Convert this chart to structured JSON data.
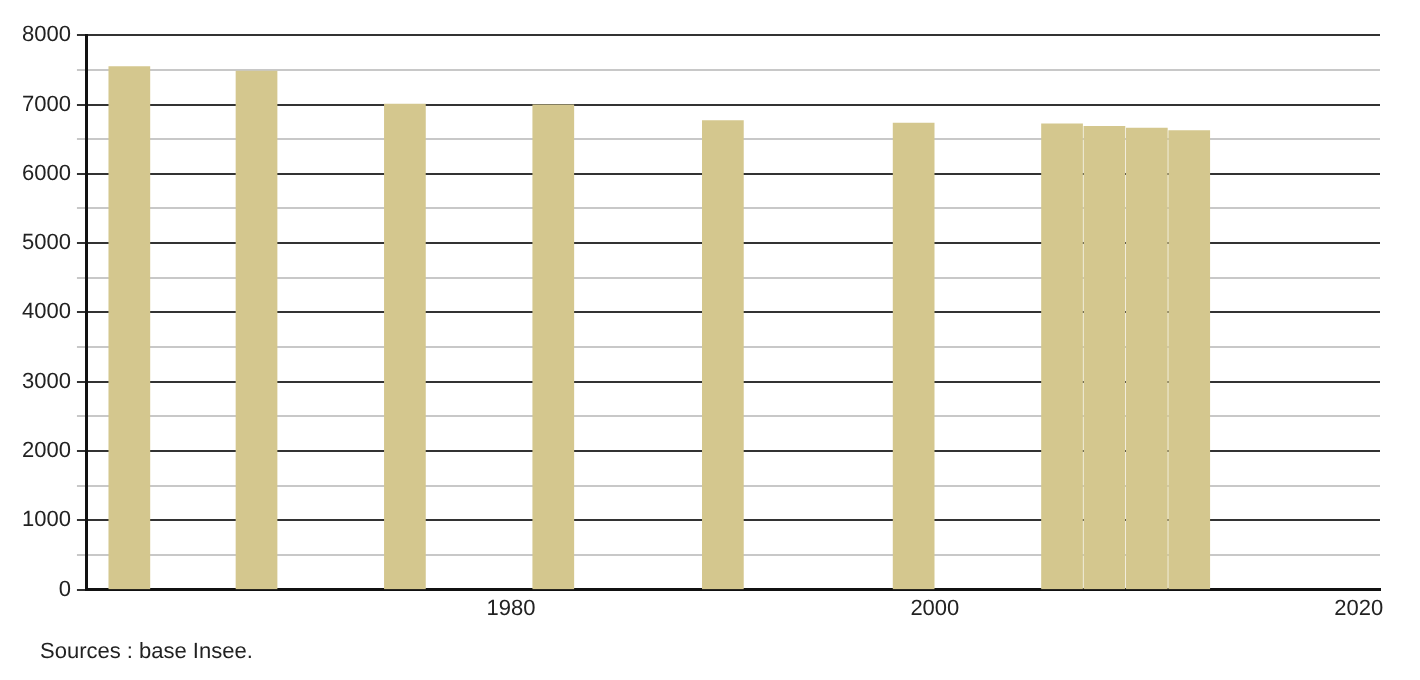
{
  "chart_data": {
    "type": "bar",
    "x": [
      1962,
      1968,
      1975,
      1982,
      1990,
      1999,
      2006,
      2008,
      2010,
      2012
    ],
    "values": [
      7543,
      7478,
      7000,
      6990,
      6764,
      6728,
      6717,
      6682,
      6655,
      6620
    ],
    "color": "#d4c78e",
    "xlim": [
      1960,
      2021
    ],
    "xticks": [
      1980,
      2000,
      2020
    ],
    "ylim": [
      0,
      8000
    ],
    "yticks": [
      0,
      {
        "value": 500,
        "label": null
      },
      1000,
      {
        "value": 1500,
        "label": null
      },
      2000,
      {
        "value": 2500,
        "label": null
      },
      3000,
      {
        "value": 3500,
        "label": null
      },
      4000,
      {
        "value": 4500,
        "label": null
      },
      5000,
      {
        "value": 5500,
        "label": null
      },
      6000,
      {
        "value": 6500,
        "label": null
      },
      7000,
      {
        "value": 7500,
        "label": null
      },
      8000
    ],
    "grid": "y",
    "legend": false,
    "annotations": [
      "Sources : base Insee."
    ]
  }
}
